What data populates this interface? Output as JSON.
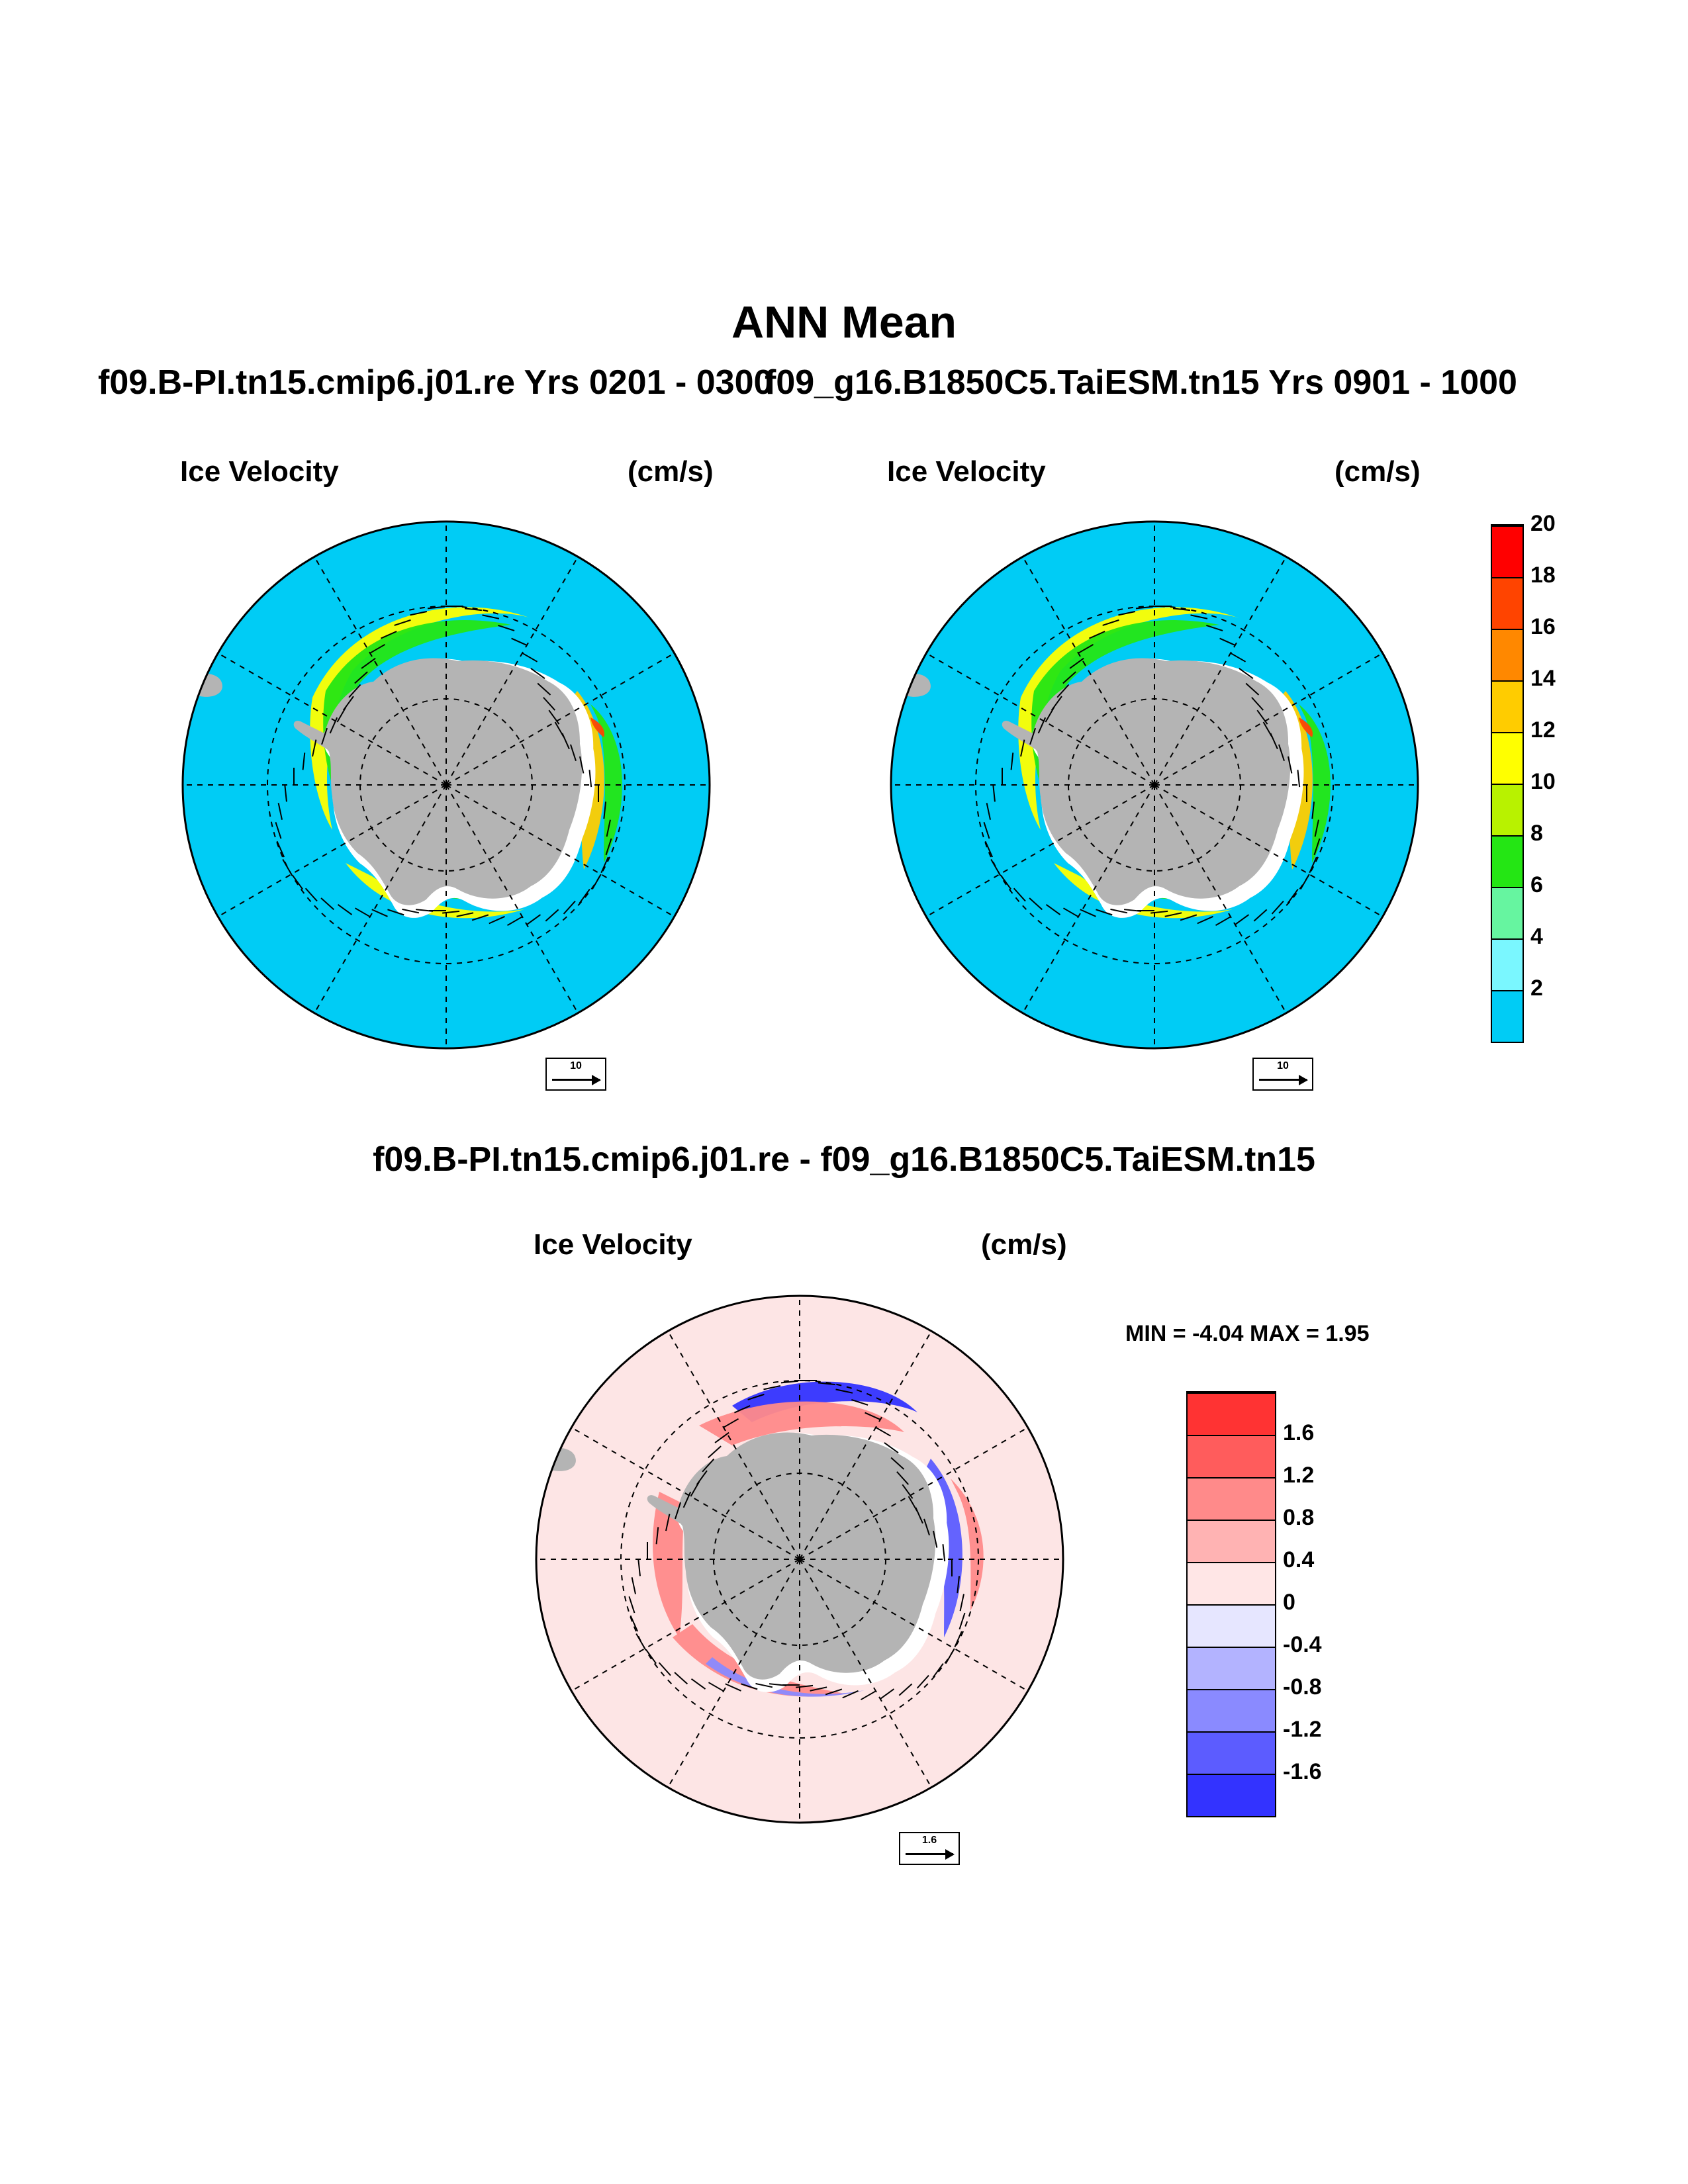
{
  "title": "ANN Mean",
  "subtitles": {
    "left": "f09.B-PI.tn15.cmip6.j01.re  Yrs 0201 - 0300",
    "right": "f09_g16.B1850C5.TaiESM.tn15  Yrs 0901 - 1000",
    "diff": "f09.B-PI.tn15.cmip6.j01.re - f09_g16.B1850C5.TaiESM.tn15"
  },
  "panels": [
    {
      "label": "Ice Velocity",
      "units": "(cm/s)",
      "ref_vector": "10"
    },
    {
      "label": "Ice Velocity",
      "units": "(cm/s)",
      "ref_vector": "10"
    },
    {
      "label": "Ice Velocity",
      "units": "(cm/s)",
      "ref_vector": "1.6"
    }
  ],
  "minmax": "MIN =  -4.04 MAX =   1.95",
  "colors": {
    "ocean": "#00ccf5",
    "land": "#b4b4b4",
    "ice_edge": "#ffffff",
    "diff_background": "#fde5e5"
  },
  "chart_data": [
    {
      "type": "heatmap",
      "title": "Ice Velocity",
      "units": "(cm/s)",
      "projection": "south polar stereographic",
      "overlay": "ice velocity vectors",
      "colorbar": {
        "levels": [
          2,
          4,
          6,
          8,
          10,
          12,
          14,
          16,
          18,
          20
        ],
        "colors": [
          "#00ccf5",
          "#7af7ff",
          "#66f5a0",
          "#24e614",
          "#b8f200",
          "#ffff00",
          "#ffcc00",
          "#ff8800",
          "#ff4400",
          "#ff0000"
        ]
      }
    },
    {
      "type": "heatmap",
      "title": "Ice Velocity",
      "units": "(cm/s)",
      "projection": "south polar stereographic",
      "overlay": "ice velocity vectors",
      "colorbar": {
        "levels": [
          2,
          4,
          6,
          8,
          10,
          12,
          14,
          16,
          18,
          20
        ],
        "colors": [
          "#00ccf5",
          "#7af7ff",
          "#66f5a0",
          "#24e614",
          "#b8f200",
          "#ffff00",
          "#ffcc00",
          "#ff8800",
          "#ff4400",
          "#ff0000"
        ]
      }
    },
    {
      "type": "heatmap",
      "title": "Ice Velocity",
      "units": "(cm/s)",
      "projection": "south polar stereographic",
      "overlay": "ice velocity difference vectors",
      "min": -4.04,
      "max": 1.95,
      "colorbar": {
        "levels": [
          -1.6,
          -1.2,
          -0.8,
          -0.4,
          0,
          0.4,
          0.8,
          1.2,
          1.6
        ],
        "colors": [
          "#3333ff",
          "#5c5cff",
          "#8a8aff",
          "#b3b3ff",
          "#e6e6ff",
          "#ffe6e6",
          "#ffb3b3",
          "#ff8a8a",
          "#ff5c5c",
          "#ff3333"
        ]
      }
    }
  ]
}
